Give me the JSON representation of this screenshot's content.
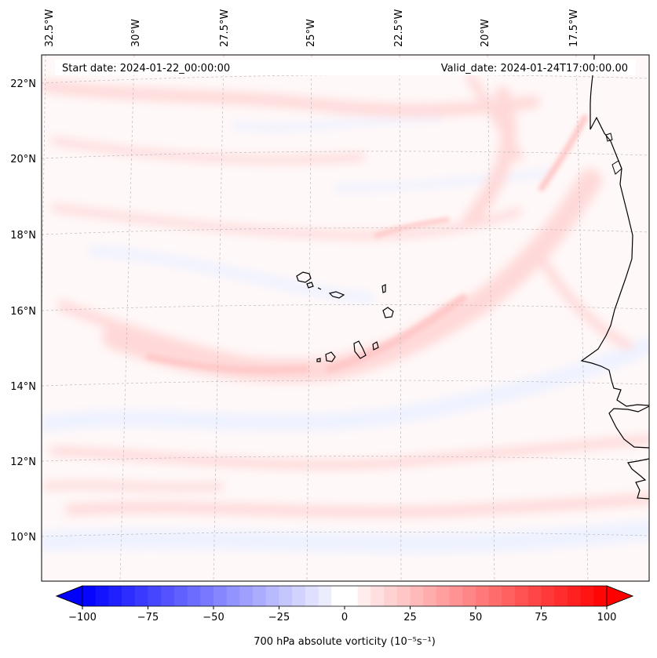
{
  "map": {
    "annotations": {
      "start_date": "Start date: 2024-01-22_00:00:00",
      "valid_date": "Valid_date: 2024-01-24T17:00:00.00"
    },
    "longitude_labels": [
      "32.5°W",
      "30°W",
      "27.5°W",
      "25°W",
      "22.5°W",
      "20°W",
      "17.5°W"
    ],
    "latitude_labels": [
      "22°N",
      "20°N",
      "18°N",
      "16°N",
      "14°N",
      "12°N",
      "10°N"
    ],
    "extent": {
      "lon_min": -32.7,
      "lon_max": -15.5,
      "lat_min": 8.8,
      "lat_max": 22.8
    },
    "colors": {
      "coast": "#000000",
      "grid": "#bbbbbb",
      "positive_field": "#ffd9d9",
      "negative_field": "#eef2ff"
    }
  },
  "colorbar": {
    "ticks": [
      "−100",
      "−75",
      "−50",
      "−25",
      "0",
      "25",
      "50",
      "75",
      "100"
    ],
    "label": "700 hPa absolute vorticity (10⁻⁵s⁻¹)",
    "range": [
      -100,
      100
    ],
    "step": 5,
    "colors": {
      "min": "#0000ff",
      "mid": "#ffffff",
      "max": "#ff0000"
    }
  }
}
